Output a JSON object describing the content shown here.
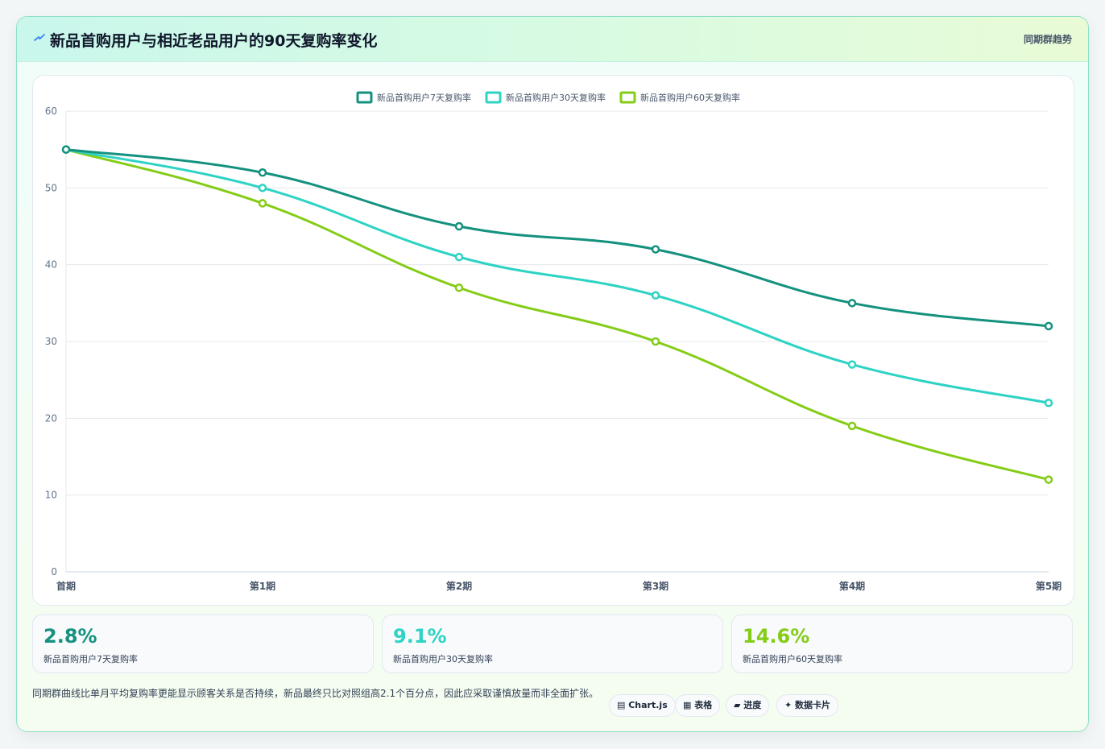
{
  "header": {
    "title": "新品首购用户与相近老品用户的90天复购率变化",
    "subtitle": "同期群趋势",
    "icon": "trend-icon"
  },
  "chart_data": {
    "type": "line",
    "categories": [
      "首期",
      "第1期",
      "第2期",
      "第3期",
      "第4期",
      "第5期"
    ],
    "ylim": [
      0,
      60
    ],
    "yticks": [
      0,
      10,
      20,
      30,
      40,
      50,
      60
    ],
    "grid": true,
    "legend_position": "top-center",
    "series": [
      {
        "name": "新品首购用户7天复购率",
        "color": "#14917f",
        "values": [
          55,
          52,
          45,
          42,
          35,
          32
        ]
      },
      {
        "name": "新品首购用户30天复购率",
        "color": "#2ed3c4",
        "values": [
          55,
          50,
          41,
          36,
          27,
          22
        ]
      },
      {
        "name": "新品首购用户60天复购率",
        "color": "#84cc16",
        "values": [
          55,
          48,
          37,
          30,
          19,
          12
        ]
      }
    ]
  },
  "stats": [
    {
      "value": "2.8%",
      "label": "新品首购用户7天复购率",
      "color": "#14917f"
    },
    {
      "value": "9.1%",
      "label": "新品首购用户30天复购率",
      "color": "#2ed3c4"
    },
    {
      "value": "14.6%",
      "label": "新品首购用户60天复购率",
      "color": "#84cc16"
    }
  ],
  "footnote": "同期群曲线比单月平均复购率更能显示顾客关系是否持续，新品最终只比对照组高2.1个百分点，因此应采取谨慎放量而非全面扩张。",
  "chips": [
    {
      "label": "Chart.js",
      "icon": "chart-icon"
    },
    {
      "label": "表格",
      "icon": "table-icon"
    },
    {
      "label": "进度",
      "icon": "progress-icon"
    },
    {
      "label": "数据卡片",
      "icon": "sparkle-icon"
    }
  ]
}
